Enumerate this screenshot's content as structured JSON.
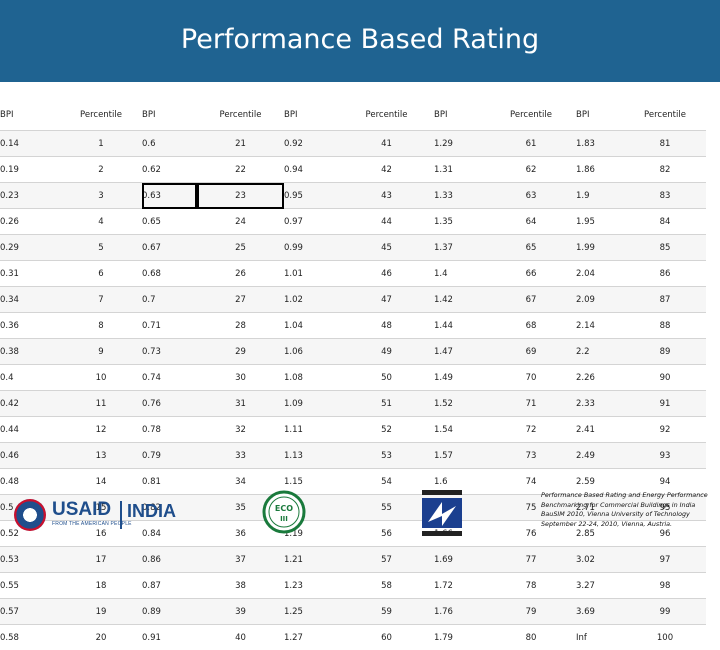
{
  "header": {
    "title": "Performance Based Rating"
  },
  "table": {
    "columns": [
      {
        "bpi": "BPI",
        "pct": "Percentile"
      },
      {
        "bpi": "BPI",
        "pct": "Percentile"
      },
      {
        "bpi": "BPI",
        "pct": "Percentile"
      },
      {
        "bpi": "BPI",
        "pct": "Percentile"
      },
      {
        "bpi": "BPI",
        "pct": "Percentile"
      }
    ],
    "rows": [
      [
        [
          "0.14",
          "1"
        ],
        [
          "0.6",
          "21"
        ],
        [
          "0.92",
          "41"
        ],
        [
          "1.29",
          "61"
        ],
        [
          "1.83",
          "81"
        ]
      ],
      [
        [
          "0.19",
          "2"
        ],
        [
          "0.62",
          "22"
        ],
        [
          "0.94",
          "42"
        ],
        [
          "1.31",
          "62"
        ],
        [
          "1.86",
          "82"
        ]
      ],
      [
        [
          "0.23",
          "3"
        ],
        [
          "0.63",
          "23"
        ],
        [
          "0.95",
          "43"
        ],
        [
          "1.33",
          "63"
        ],
        [
          "1.9",
          "83"
        ]
      ],
      [
        [
          "0.26",
          "4"
        ],
        [
          "0.65",
          "24"
        ],
        [
          "0.97",
          "44"
        ],
        [
          "1.35",
          "64"
        ],
        [
          "1.95",
          "84"
        ]
      ],
      [
        [
          "0.29",
          "5"
        ],
        [
          "0.67",
          "25"
        ],
        [
          "0.99",
          "45"
        ],
        [
          "1.37",
          "65"
        ],
        [
          "1.99",
          "85"
        ]
      ],
      [
        [
          "0.31",
          "6"
        ],
        [
          "0.68",
          "26"
        ],
        [
          "1.01",
          "46"
        ],
        [
          "1.4",
          "66"
        ],
        [
          "2.04",
          "86"
        ]
      ],
      [
        [
          "0.34",
          "7"
        ],
        [
          "0.7",
          "27"
        ],
        [
          "1.02",
          "47"
        ],
        [
          "1.42",
          "67"
        ],
        [
          "2.09",
          "87"
        ]
      ],
      [
        [
          "0.36",
          "8"
        ],
        [
          "0.71",
          "28"
        ],
        [
          "1.04",
          "48"
        ],
        [
          "1.44",
          "68"
        ],
        [
          "2.14",
          "88"
        ]
      ],
      [
        [
          "0.38",
          "9"
        ],
        [
          "0.73",
          "29"
        ],
        [
          "1.06",
          "49"
        ],
        [
          "1.47",
          "69"
        ],
        [
          "2.2",
          "89"
        ]
      ],
      [
        [
          "0.4",
          "10"
        ],
        [
          "0.74",
          "30"
        ],
        [
          "1.08",
          "50"
        ],
        [
          "1.49",
          "70"
        ],
        [
          "2.26",
          "90"
        ]
      ],
      [
        [
          "0.42",
          "11"
        ],
        [
          "0.76",
          "31"
        ],
        [
          "1.09",
          "51"
        ],
        [
          "1.52",
          "71"
        ],
        [
          "2.33",
          "91"
        ]
      ],
      [
        [
          "0.44",
          "12"
        ],
        [
          "0.78",
          "32"
        ],
        [
          "1.11",
          "52"
        ],
        [
          "1.54",
          "72"
        ],
        [
          "2.41",
          "92"
        ]
      ],
      [
        [
          "0.46",
          "13"
        ],
        [
          "0.79",
          "33"
        ],
        [
          "1.13",
          "53"
        ],
        [
          "1.57",
          "73"
        ],
        [
          "2.49",
          "93"
        ]
      ],
      [
        [
          "0.48",
          "14"
        ],
        [
          "0.81",
          "34"
        ],
        [
          "1.15",
          "54"
        ],
        [
          "1.6",
          "74"
        ],
        [
          "2.59",
          "94"
        ]
      ],
      [
        [
          "0.5",
          "15"
        ],
        [
          "0.82",
          "35"
        ],
        [
          "1.17",
          "55"
        ],
        [
          "1.63",
          "75"
        ],
        [
          "2.71",
          "95"
        ]
      ],
      [
        [
          "0.52",
          "16"
        ],
        [
          "0.84",
          "36"
        ],
        [
          "1.19",
          "56"
        ],
        [
          "1.66",
          "76"
        ],
        [
          "2.85",
          "96"
        ]
      ],
      [
        [
          "0.53",
          "17"
        ],
        [
          "0.86",
          "37"
        ],
        [
          "1.21",
          "57"
        ],
        [
          "1.69",
          "77"
        ],
        [
          "3.02",
          "97"
        ]
      ],
      [
        [
          "0.55",
          "18"
        ],
        [
          "0.87",
          "38"
        ],
        [
          "1.23",
          "58"
        ],
        [
          "1.72",
          "78"
        ],
        [
          "3.27",
          "98"
        ]
      ],
      [
        [
          "0.57",
          "19"
        ],
        [
          "0.89",
          "39"
        ],
        [
          "1.25",
          "59"
        ],
        [
          "1.76",
          "79"
        ],
        [
          "3.69",
          "99"
        ]
      ],
      [
        [
          "0.58",
          "20"
        ],
        [
          "0.91",
          "40"
        ],
        [
          "1.27",
          "60"
        ],
        [
          "1.79",
          "80"
        ],
        [
          "Inf",
          "100"
        ]
      ]
    ],
    "highlight": {
      "row": 2,
      "col": 1
    }
  },
  "footer": {
    "usaid_logo": {
      "word": "USAID",
      "sub": "FROM THE AMERICAN PEOPLE",
      "country": "INDIA",
      "icon": "usaid-seal-icon"
    },
    "eco_logo": {
      "icon": "eco-iii-logo-icon",
      "text": "ECO III"
    },
    "third_logo": {
      "icon": "energy-conservation-logo-icon"
    },
    "citation": "Performance Based Rating and Energy Performance Benchmarking for Commercial Buildings in India BauSIM 2010, Vienna University of Technology September 22-24, 2010, Vienna, Austria."
  }
}
